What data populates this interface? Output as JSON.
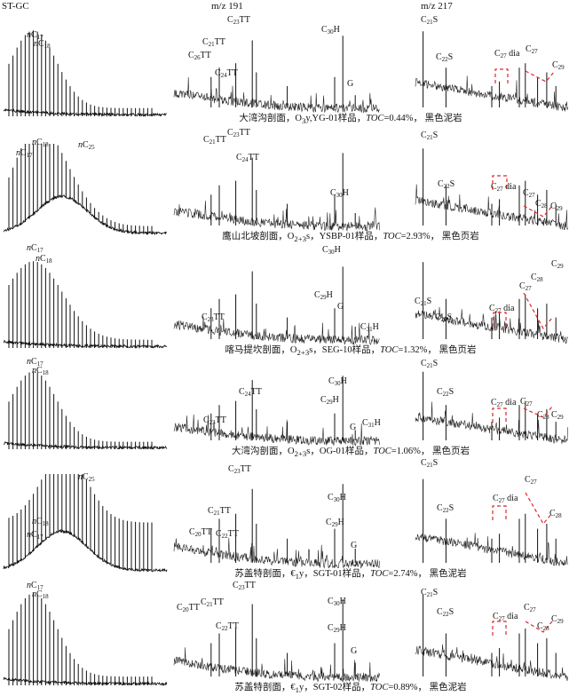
{
  "headers": {
    "gc": "ST-GC",
    "m191": "m/z 191",
    "m217": "m/z 217"
  },
  "accent_color": "#e0262c",
  "captions": [
    {
      "pre": "大湾沟剖面，O",
      "sub": "3",
      "mid": "y,YG-01样品，",
      "toc_label": "TOC",
      "toc_value": "=0.44%，",
      "lith": "黑色泥岩"
    },
    {
      "pre": "鹰山北坡剖面，O",
      "sub": "2+3",
      "mid": "s，YSBP-01样品，",
      "toc_label": "TOC",
      "toc_value": "=2.93%，",
      "lith": "黑色页岩"
    },
    {
      "pre": "喀马提坎剖面，O",
      "sub": "2+3",
      "mid": "s，SEG-10样品，",
      "toc_label": "TOC",
      "toc_value": "=1.32%，",
      "lith": "黑色页岩"
    },
    {
      "pre": "大湾沟剖面，O",
      "sub": "2+3",
      "mid": "s，OG-01样品，",
      "toc_label": "TOC",
      "toc_value": "=1.06%，",
      "lith": "黑色页岩"
    },
    {
      "pre": "苏盖特剖面，€",
      "sub": "1",
      "mid": "y，SGT-01样品，",
      "toc_label": "TOC",
      "toc_value": "=2.74%，",
      "lith": "黑色泥岩"
    },
    {
      "pre": "苏盖特剖面，€",
      "sub": "1",
      "mid": "y，SGT-02样品，",
      "toc_label": "TOC",
      "toc_value": "=0.89%，",
      "lith": "黑色泥岩"
    }
  ],
  "chart_data": {
    "type": "line",
    "title": "",
    "panel_columns": [
      "ST-GC",
      "m/z 191",
      "m/z 217"
    ],
    "grid": false,
    "rows": [
      {
        "gc": {
          "labels": [
            [
              "n",
              "C",
              "17",
              ""
            ],
            [
              "n",
              "C",
              "18",
              ""
            ]
          ]
        },
        "m191": {
          "labels": [
            [
              "",
              "C",
              "21",
              "TT"
            ],
            [
              "",
              "C",
              "23",
              "TT"
            ],
            [
              "",
              "C",
              "24",
              "TT"
            ],
            [
              "",
              "C",
              "26",
              "TT"
            ],
            [
              "",
              "C",
              "30",
              "H"
            ],
            [
              "",
              "G",
              "",
              ""
            ]
          ]
        },
        "m217": {
          "labels": [
            [
              "",
              "C",
              "21",
              "S"
            ],
            [
              "",
              "C",
              "22",
              "S"
            ],
            [
              "",
              "C",
              "27",
              "dia"
            ],
            [
              "",
              "C",
              "27",
              ""
            ],
            [
              "",
              "C",
              "29",
              ""
            ]
          ]
        }
      },
      {
        "gc": {
          "labels": [
            [
              "n",
              "C",
              "17",
              ""
            ],
            [
              "n",
              "C",
              "18",
              ""
            ],
            [
              "n",
              "C",
              "25",
              ""
            ]
          ]
        },
        "m191": {
          "labels": [
            [
              "",
              "C",
              "21",
              "TT"
            ],
            [
              "",
              "C",
              "23",
              "TT"
            ],
            [
              "",
              "C",
              "24",
              "TT"
            ],
            [
              "",
              "C",
              "30",
              "H"
            ]
          ]
        },
        "m217": {
          "labels": [
            [
              "",
              "C",
              "21",
              "S"
            ],
            [
              "",
              "C",
              "22",
              "S"
            ],
            [
              "",
              "C",
              "27",
              "dia"
            ],
            [
              "",
              "C",
              "27",
              ""
            ],
            [
              "",
              "C",
              "28",
              ""
            ],
            [
              "",
              "C",
              "29",
              ""
            ]
          ]
        }
      },
      {
        "gc": {
          "labels": [
            [
              "n",
              "C",
              "17",
              ""
            ],
            [
              "n",
              "C",
              "18",
              ""
            ]
          ]
        },
        "m191": {
          "labels": [
            [
              "",
              "C",
              "23",
              "TT"
            ],
            [
              "",
              "C",
              "29",
              "H"
            ],
            [
              "",
              "C",
              "30",
              "H"
            ],
            [
              "",
              "G",
              "",
              ""
            ],
            [
              "",
              "C",
              "31",
              "H"
            ]
          ]
        },
        "m217": {
          "labels": [
            [
              "",
              "C",
              "21",
              "S"
            ],
            [
              "",
              "C",
              "22",
              "S"
            ],
            [
              "",
              "C",
              "27",
              "dia"
            ],
            [
              "",
              "C",
              "27",
              ""
            ],
            [
              "",
              "C",
              "28",
              ""
            ],
            [
              "",
              "C",
              "29",
              ""
            ]
          ]
        }
      },
      {
        "gc": {
          "labels": [
            [
              "n",
              "C",
              "17",
              ""
            ],
            [
              "n",
              "C",
              "18",
              ""
            ]
          ]
        },
        "m191": {
          "labels": [
            [
              "",
              "C",
              "23",
              "TT"
            ],
            [
              "",
              "C",
              "24",
              "TT"
            ],
            [
              "",
              "C",
              "29",
              "H"
            ],
            [
              "",
              "C",
              "30",
              "H"
            ],
            [
              "",
              "G",
              "",
              ""
            ],
            [
              "",
              "C",
              "31",
              "H"
            ]
          ]
        },
        "m217": {
          "labels": [
            [
              "",
              "C",
              "21",
              "S"
            ],
            [
              "",
              "C",
              "22",
              "S"
            ],
            [
              "",
              "C",
              "27",
              "dia"
            ],
            [
              "",
              "C",
              "27",
              ""
            ],
            [
              "",
              "C",
              "28",
              ""
            ],
            [
              "",
              "C",
              "29",
              ""
            ]
          ]
        }
      },
      {
        "gc": {
          "labels": [
            [
              "n",
              "C",
              "17",
              ""
            ],
            [
              "n",
              "C",
              "18",
              ""
            ],
            [
              "n",
              "C",
              "25",
              ""
            ]
          ]
        },
        "m191": {
          "labels": [
            [
              "",
              "C",
              "20",
              "TT"
            ],
            [
              "",
              "C",
              "21",
              "TT"
            ],
            [
              "",
              "C",
              "22",
              "TT"
            ],
            [
              "",
              "C",
              "23",
              "TT"
            ],
            [
              "",
              "C",
              "29",
              "H"
            ],
            [
              "",
              "C",
              "30",
              "H"
            ],
            [
              "",
              "G",
              "",
              ""
            ]
          ]
        },
        "m217": {
          "labels": [
            [
              "",
              "C",
              "21",
              "S"
            ],
            [
              "",
              "C",
              "22",
              "S"
            ],
            [
              "",
              "C",
              "27",
              "dia"
            ],
            [
              "",
              "C",
              "27",
              ""
            ],
            [
              "",
              "C",
              "28",
              ""
            ]
          ]
        }
      },
      {
        "gc": {
          "labels": [
            [
              "n",
              "C",
              "17",
              ""
            ],
            [
              "n",
              "C",
              "18",
              ""
            ]
          ]
        },
        "m191": {
          "labels": [
            [
              "",
              "C",
              "20",
              "TT"
            ],
            [
              "",
              "C",
              "21",
              "TT"
            ],
            [
              "",
              "C",
              "22",
              "TT"
            ],
            [
              "",
              "C",
              "23",
              "TT"
            ],
            [
              "",
              "C",
              "29",
              "H"
            ],
            [
              "",
              "C",
              "30",
              "H"
            ],
            [
              "",
              "G",
              "",
              ""
            ]
          ]
        },
        "m217": {
          "labels": [
            [
              "",
              "C",
              "21",
              "S"
            ],
            [
              "",
              "C",
              "22",
              "S"
            ],
            [
              "",
              "C",
              "27",
              "dia"
            ],
            [
              "",
              "C",
              "27",
              ""
            ],
            [
              "",
              "C",
              "28",
              ""
            ],
            [
              "",
              "C",
              "29",
              ""
            ]
          ]
        }
      }
    ]
  }
}
